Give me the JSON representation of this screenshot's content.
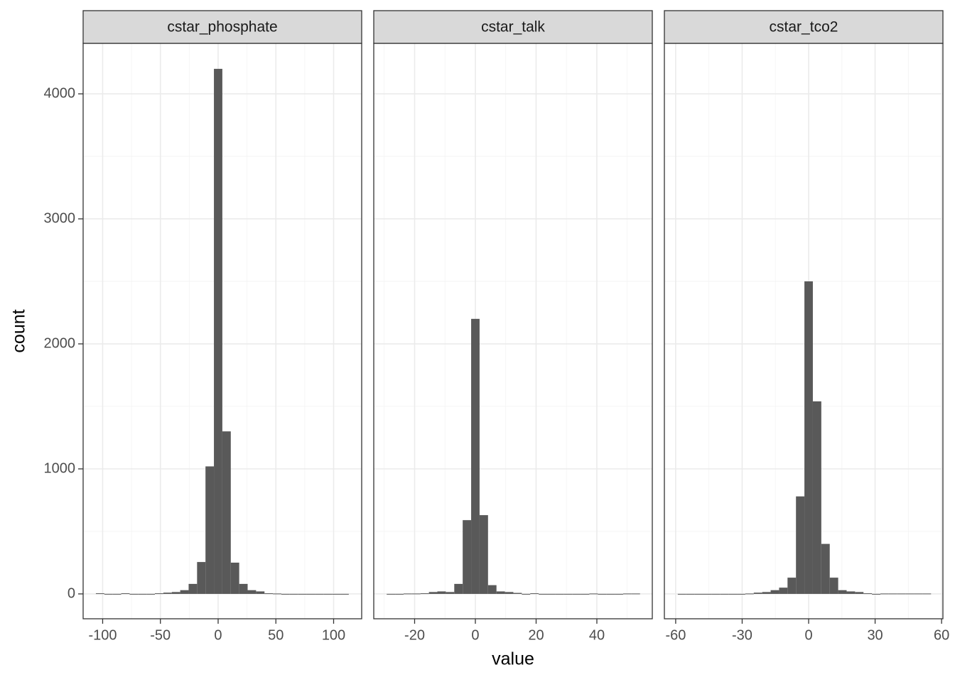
{
  "ylabel": "count",
  "xlabel": "value",
  "chart_data": [
    {
      "type": "histogram",
      "title": "cstar_phosphate",
      "color": "#595959",
      "grid": true,
      "bins": [
        -105.85,
        -98.55,
        -91.25,
        -83.95,
        -76.65,
        -69.35,
        -62.05,
        -54.75,
        -47.45,
        -40.15,
        -32.85,
        -25.55,
        -18.25,
        -10.95,
        -3.65,
        3.65,
        10.95,
        18.25,
        25.55,
        32.85,
        40.15,
        47.45,
        54.75,
        62.05,
        69.35,
        76.65,
        83.95,
        91.25,
        98.55,
        105.85,
        113.15
      ],
      "values": [
        5,
        0,
        0,
        5,
        0,
        0,
        0,
        5,
        10,
        15,
        30,
        80,
        255,
        1020,
        4200,
        1300,
        250,
        80,
        30,
        20,
        5,
        3,
        0,
        0,
        0,
        0,
        0,
        0,
        0,
        0
      ],
      "xlim": [
        -116.9,
        124.3
      ],
      "xticks": [
        -100,
        -50,
        0,
        50,
        100
      ],
      "ylim": [
        -199,
        4404
      ],
      "yticks": [
        0,
        1000,
        2000,
        3000,
        4000
      ]
    },
    {
      "type": "histogram",
      "title": "cstar_talk",
      "color": "#595959",
      "grid": true,
      "bins": [
        -29.19,
        -26.41,
        -23.63,
        -20.85,
        -18.07,
        -15.29,
        -12.51,
        -9.73,
        -6.95,
        -4.17,
        -1.39,
        1.39,
        4.17,
        6.95,
        9.73,
        12.51,
        15.29,
        18.07,
        20.85,
        23.63,
        26.41,
        29.19,
        31.97,
        34.75,
        37.53,
        40.31,
        43.09,
        45.87,
        48.65,
        51.43,
        54.21
      ],
      "values": [
        0,
        0,
        3,
        3,
        5,
        15,
        20,
        15,
        80,
        590,
        2200,
        630,
        70,
        20,
        15,
        8,
        0,
        5,
        0,
        0,
        0,
        0,
        0,
        0,
        3,
        0,
        0,
        0,
        3,
        3
      ],
      "xlim": [
        -33.45,
        58.25
      ],
      "xticks": [
        -20,
        0,
        20,
        40
      ],
      "ylim": [
        -199,
        4404
      ],
      "yticks": [
        0,
        1000,
        2000,
        3000,
        4000
      ]
    },
    {
      "type": "histogram",
      "title": "cstar_tco2",
      "color": "#595959",
      "grid": true,
      "bins": [
        -59.055,
        -55.245,
        -51.435,
        -47.625,
        -43.815,
        -40.005,
        -36.195,
        -32.385,
        -28.575,
        -24.765,
        -20.955,
        -17.145,
        -13.335,
        -9.525,
        -5.715,
        -1.905,
        1.905,
        5.715,
        9.525,
        13.335,
        17.145,
        20.955,
        24.765,
        28.575,
        32.385,
        36.195,
        40.005,
        43.815,
        47.625,
        51.435,
        55.245
      ],
      "values": [
        0,
        0,
        0,
        0,
        0,
        0,
        0,
        0,
        3,
        10,
        15,
        30,
        50,
        130,
        780,
        2500,
        1540,
        400,
        130,
        30,
        20,
        15,
        5,
        0,
        3,
        3,
        3,
        3,
        3,
        3
      ],
      "xlim": [
        -65.1,
        60.6
      ],
      "xticks": [
        -60,
        -30,
        0,
        30,
        60
      ],
      "ylim": [
        -199,
        4404
      ],
      "yticks": [
        0,
        1000,
        2000,
        3000,
        4000
      ]
    }
  ]
}
